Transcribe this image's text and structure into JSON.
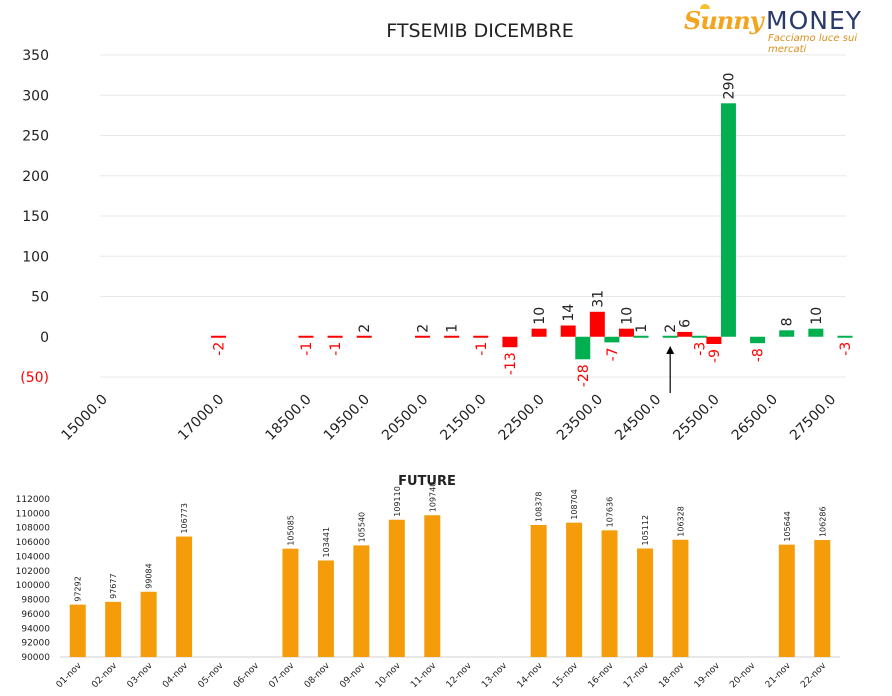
{
  "logo": {
    "brand_left": "Sunny",
    "brand_right": "MONEY",
    "tagline": "Facciamo luce sui mercati",
    "colors": {
      "sunny": "#f2a41c",
      "money": "#2a3a68",
      "tagline": "#d98e1a"
    }
  },
  "chart_data": [
    {
      "type": "bar",
      "title": "FTSEMIB DICEMBRE",
      "xlabel": "",
      "ylabel": "",
      "ylim": [
        -50,
        350
      ],
      "yticks": [
        "350",
        "300",
        "250",
        "200",
        "150",
        "100",
        "50",
        "0",
        "(50)"
      ],
      "ytick_values": [
        350,
        300,
        250,
        200,
        150,
        100,
        50,
        0,
        -50
      ],
      "categories": [
        "15000.0",
        "15500.0",
        "16000.0",
        "16500.0",
        "17000.0",
        "17500.0",
        "18000.0",
        "18500.0",
        "19000.0",
        "19500.0",
        "20000.0",
        "20500.0",
        "21000.0",
        "21500.0",
        "22000.0",
        "22500.0",
        "23000.0",
        "23500.0",
        "24000.0",
        "24500.0",
        "25000.0",
        "25500.0",
        "26000.0",
        "26500.0",
        "27000.0",
        "27500.0"
      ],
      "category_labels_shown": [
        "15000.0",
        "17000.0",
        "18500.0",
        "19500.0",
        "20500.0",
        "21500.0",
        "22500.0",
        "23500.0",
        "24500.0",
        "25500.0",
        "26500.0",
        "27500.0"
      ],
      "bars": [
        {
          "strike": 17000,
          "value": -2,
          "label": "-2"
        },
        {
          "strike": 18500,
          "value": -1,
          "label": "-1"
        },
        {
          "strike": 19000,
          "value": -1,
          "label": "-1"
        },
        {
          "strike": 19500,
          "value": 2,
          "label": "2"
        },
        {
          "strike": 20500,
          "value": 2,
          "label": "2"
        },
        {
          "strike": 21000,
          "value": 1,
          "label": "1"
        },
        {
          "strike": 21500,
          "value": -1,
          "label": "-1"
        },
        {
          "strike": 22000,
          "value": -13,
          "label": "-13"
        },
        {
          "strike": 22500,
          "value": 10,
          "label": "10"
        },
        {
          "strike": 23000,
          "value": 14,
          "label": "14"
        },
        {
          "strike": 23250,
          "value": -28,
          "label": "-28"
        },
        {
          "strike": 23500,
          "value": 31,
          "label": "31"
        },
        {
          "strike": 23750,
          "value": -7,
          "label": "-7"
        },
        {
          "strike": 24000,
          "value": 10,
          "label": "10"
        },
        {
          "strike": 24250,
          "value": 1,
          "label": "1"
        },
        {
          "strike": 24750,
          "value": 2,
          "label": "2"
        },
        {
          "strike": 25000,
          "value": 6,
          "label": "6"
        },
        {
          "strike": 25250,
          "value": -3,
          "label": "-3"
        },
        {
          "strike": 25500,
          "value": -9,
          "label": "-9"
        },
        {
          "strike": 25750,
          "value": 290,
          "label": "290"
        },
        {
          "strike": 26250,
          "value": -8,
          "label": "-8"
        },
        {
          "strike": 26750,
          "value": 8,
          "label": "8"
        },
        {
          "strike": 27250,
          "value": 10,
          "label": "10"
        },
        {
          "strike": 27750,
          "value": -3,
          "label": "-3"
        }
      ],
      "arrow_marker_strike": 24750,
      "colors": {
        "red": "#ff0000",
        "green": "#00b050",
        "label_red": "#ff0000",
        "label_dark": "#222222",
        "grid": "#e8e8e8"
      },
      "grid": true,
      "legend": "none"
    },
    {
      "type": "bar",
      "title": "FUTURE",
      "xlabel": "",
      "ylabel": "",
      "ylim": [
        90000,
        112000
      ],
      "yticks": [
        "112000",
        "110000",
        "108000",
        "106000",
        "104000",
        "102000",
        "100000",
        "98000",
        "96000",
        "94000",
        "92000",
        "90000"
      ],
      "ytick_values": [
        112000,
        110000,
        108000,
        106000,
        104000,
        102000,
        100000,
        98000,
        96000,
        94000,
        92000,
        90000
      ],
      "categories": [
        "01-nov",
        "02-nov",
        "03-nov",
        "04-nov",
        "05-nov",
        "06-nov",
        "07-nov",
        "08-nov",
        "09-nov",
        "10-nov",
        "11-nov",
        "12-nov",
        "13-nov",
        "14-nov",
        "15-nov",
        "16-nov",
        "17-nov",
        "18-nov",
        "19-nov",
        "20-nov",
        "21-nov",
        "22-nov"
      ],
      "values": [
        97292,
        97677,
        99084,
        106773,
        null,
        null,
        105085,
        103441,
        105540,
        109110,
        109740,
        null,
        null,
        108378,
        108704,
        107636,
        105112,
        106328,
        null,
        null,
        105644,
        106286
      ],
      "value_labels": [
        "97292",
        "97677",
        "99084",
        "106773",
        "",
        "",
        "105085",
        "103441",
        "105540",
        "109110",
        "109740",
        "",
        "",
        "108378",
        "108704",
        "107636",
        "105112",
        "106328",
        "",
        "",
        "105644",
        "106286"
      ],
      "colors": {
        "bar": "#f59c0b"
      },
      "grid": false,
      "legend": "none"
    }
  ]
}
